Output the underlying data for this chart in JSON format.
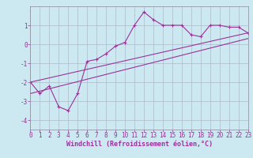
{
  "xlabel": "Windchill (Refroidissement éolien,°C)",
  "background_color": "#cce8f0",
  "grid_color": "#aabbcc",
  "line_color": "#993399",
  "xlim": [
    0,
    23
  ],
  "ylim": [
    -4.5,
    2.0
  ],
  "xticks": [
    0,
    1,
    2,
    3,
    4,
    5,
    6,
    7,
    8,
    9,
    10,
    11,
    12,
    13,
    14,
    15,
    16,
    17,
    18,
    19,
    20,
    21,
    22,
    23
  ],
  "yticks": [
    -4,
    -3,
    -2,
    -1,
    0,
    1
  ],
  "series1_x": [
    0,
    1,
    2,
    3,
    4,
    5,
    6,
    7,
    8,
    9,
    10,
    11,
    12,
    13,
    14,
    15,
    16,
    17,
    18,
    19,
    20,
    21,
    22,
    23
  ],
  "series1_y": [
    -2.0,
    -2.6,
    -2.2,
    -3.3,
    -3.5,
    -2.6,
    -0.9,
    -0.8,
    -0.5,
    -0.1,
    0.1,
    1.0,
    1.7,
    1.3,
    1.0,
    1.0,
    1.0,
    0.5,
    0.4,
    1.0,
    1.0,
    0.9,
    0.9,
    0.6
  ],
  "series2_x": [
    0,
    23
  ],
  "series2_y": [
    -2.0,
    0.6
  ],
  "series3_x": [
    0,
    23
  ],
  "series3_y": [
    -2.6,
    0.3
  ],
  "tick_fontsize": 5.5,
  "xlabel_fontsize": 6.0
}
